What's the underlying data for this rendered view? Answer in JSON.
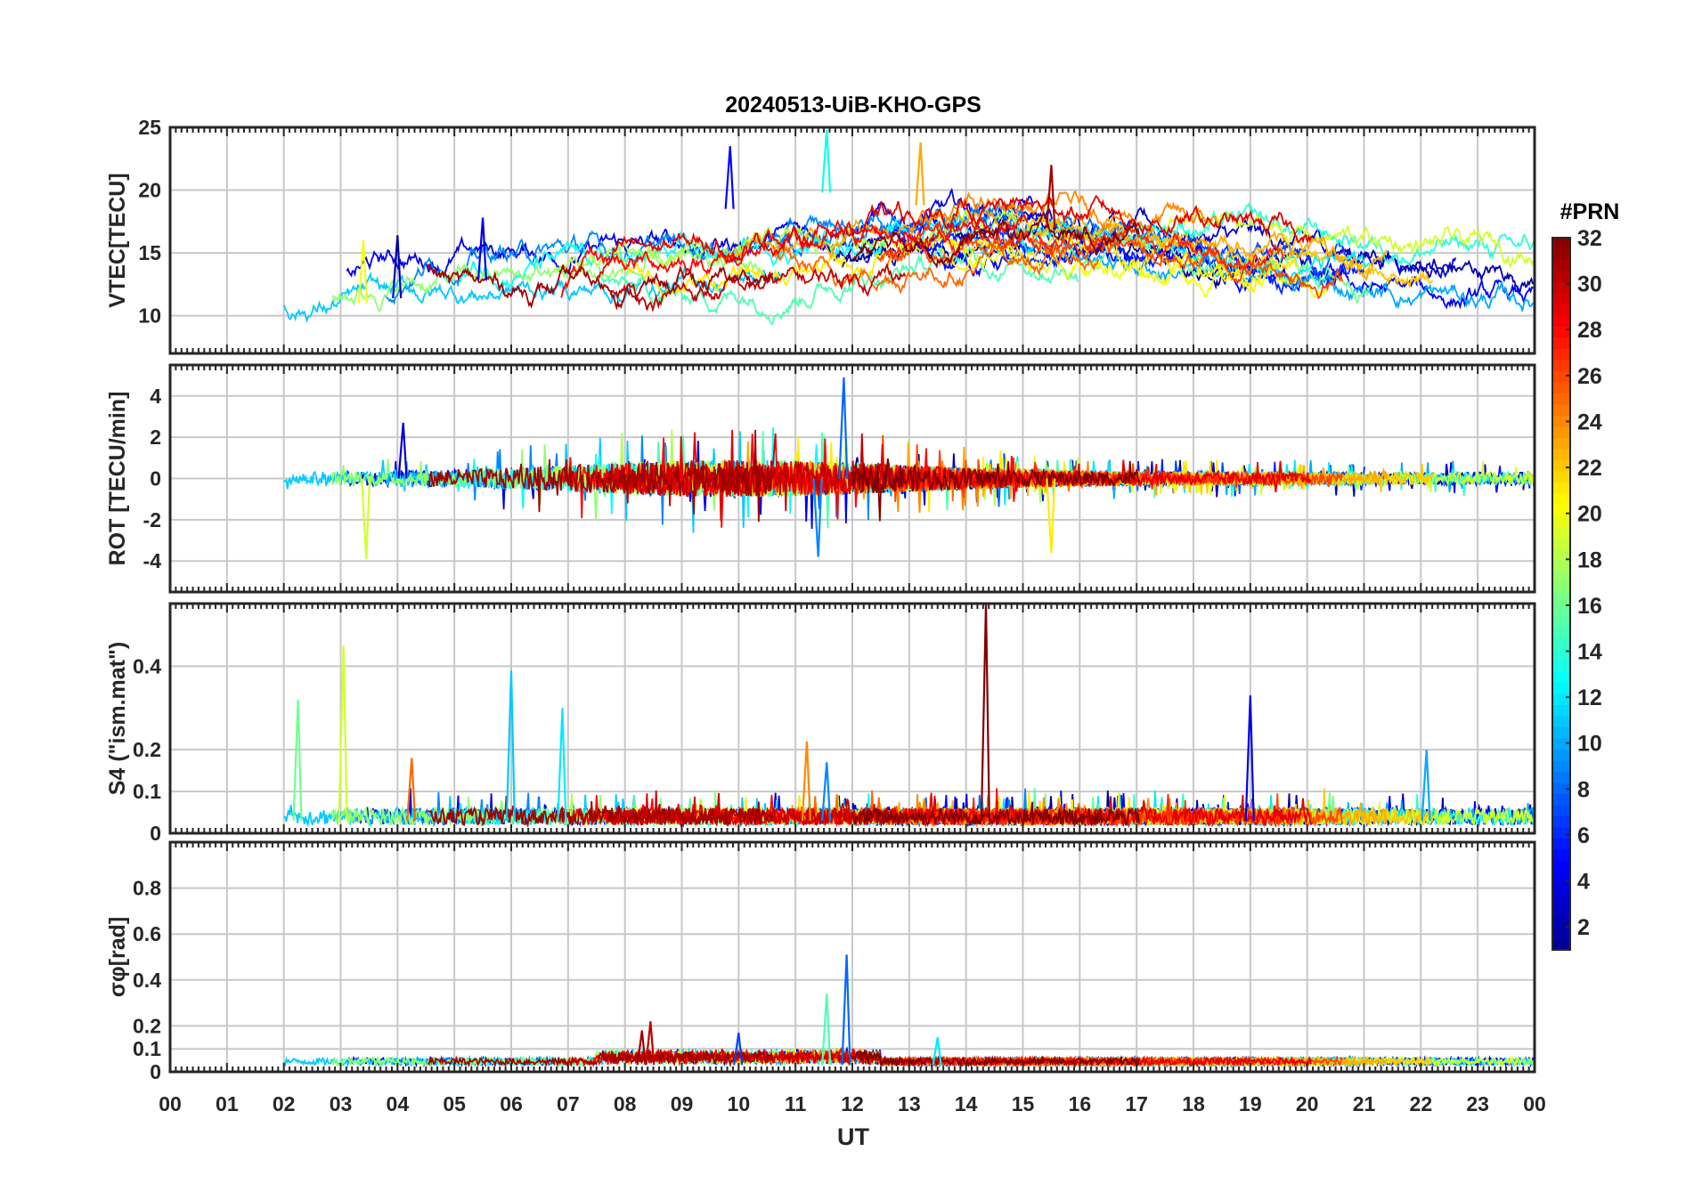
{
  "figure_title": "20240513-UiB-KHO-GPS",
  "x_axis": {
    "label": "UT",
    "range_hours": [
      0,
      24
    ],
    "tick_labels": [
      "00",
      "01",
      "02",
      "03",
      "04",
      "05",
      "06",
      "07",
      "08",
      "09",
      "10",
      "11",
      "12",
      "13",
      "14",
      "15",
      "16",
      "17",
      "18",
      "19",
      "20",
      "21",
      "22",
      "23",
      "00"
    ]
  },
  "colorbar": {
    "label": "#PRN",
    "range": [
      1,
      32
    ],
    "tick_values": [
      2,
      4,
      6,
      8,
      10,
      12,
      14,
      16,
      18,
      20,
      22,
      24,
      26,
      28,
      30,
      32
    ],
    "tick_labels": [
      "2",
      "4",
      "6",
      "8",
      "10",
      "12",
      "14",
      "16",
      "18",
      "20",
      "22",
      "24",
      "26",
      "28",
      "30",
      "32"
    ],
    "colormap": "jet",
    "palette": [
      "#00008f",
      "#0000ff",
      "#0080ff",
      "#00ffff",
      "#80ff80",
      "#ffff00",
      "#ff8000",
      "#ff0000",
      "#800000"
    ]
  },
  "colors": {
    "axis": "#262626",
    "grid": "#c8c8c8",
    "background": "#ffffff"
  },
  "chart_data": [
    {
      "type": "line",
      "id": "vtec",
      "ylabel": "VTEC[TECU]",
      "ylim": [
        7,
        25
      ],
      "yticks": [
        10,
        15,
        20,
        25
      ],
      "ytick_labels": [
        "10",
        "15",
        "20",
        "25"
      ],
      "grid": true,
      "highlights": [
        {
          "prn": 5,
          "t": 9.85,
          "v": 23.5
        },
        {
          "prn": 13,
          "t": 11.55,
          "v": 24.8
        },
        {
          "prn": 23,
          "t": 13.2,
          "v": 23.8
        },
        {
          "prn": 4,
          "t": 5.5,
          "v": 17.8
        },
        {
          "prn": 2,
          "t": 4.0,
          "v": 16.4
        },
        {
          "prn": 20,
          "t": 3.4,
          "v": 16.0
        },
        {
          "prn": 31,
          "t": 15.5,
          "v": 22.0
        }
      ]
    },
    {
      "type": "line",
      "id": "rot",
      "ylabel": "ROT [TECU/min]",
      "ylim": [
        -5.5,
        5.5
      ],
      "yticks": [
        -4,
        -2,
        0,
        2,
        4
      ],
      "ytick_labels": [
        "-4",
        "-2",
        "0",
        "2",
        "4"
      ],
      "grid": true,
      "highlights": [
        {
          "prn": 8,
          "t": 11.85,
          "v": 4.9
        },
        {
          "prn": 9,
          "t": 11.4,
          "v": -3.8
        },
        {
          "prn": 19,
          "t": 3.45,
          "v": -3.9
        },
        {
          "prn": 21,
          "t": 15.5,
          "v": -3.6
        },
        {
          "prn": 3,
          "t": 4.1,
          "v": 2.7
        }
      ]
    },
    {
      "type": "line",
      "id": "s4",
      "ylabel": "S4 (\"ism.mat\")",
      "ylim": [
        0,
        0.55
      ],
      "yticks": [
        0,
        0.1,
        0.2,
        0.4
      ],
      "ytick_labels": [
        "0",
        "0.1",
        "0.2",
        "0.4"
      ],
      "grid": true,
      "highlights": [
        {
          "prn": 32,
          "t": 14.35,
          "v": 0.55
        },
        {
          "prn": 19,
          "t": 3.05,
          "v": 0.45
        },
        {
          "prn": 11,
          "t": 6.0,
          "v": 0.39
        },
        {
          "prn": 4,
          "t": 19.0,
          "v": 0.33
        },
        {
          "prn": 16,
          "t": 2.25,
          "v": 0.32
        },
        {
          "prn": 12,
          "t": 6.9,
          "v": 0.3
        },
        {
          "prn": 24,
          "t": 11.2,
          "v": 0.22
        },
        {
          "prn": 10,
          "t": 22.1,
          "v": 0.2
        },
        {
          "prn": 25,
          "t": 4.25,
          "v": 0.18
        },
        {
          "prn": 9,
          "t": 11.55,
          "v": 0.17
        }
      ]
    },
    {
      "type": "line",
      "id": "sigma_phi",
      "ylabel": "σφ[rad]",
      "ylim": [
        0,
        1.0
      ],
      "yticks": [
        0,
        0.1,
        0.2,
        0.4,
        0.6,
        0.8
      ],
      "ytick_labels": [
        "0",
        "0.1",
        "0.2",
        "0.4",
        "0.6",
        "0.8"
      ],
      "grid": true,
      "highlights": [
        {
          "prn": 8,
          "t": 11.9,
          "v": 0.51
        },
        {
          "prn": 15,
          "t": 11.55,
          "v": 0.34
        },
        {
          "prn": 30,
          "t": 8.45,
          "v": 0.22
        },
        {
          "prn": 31,
          "t": 8.3,
          "v": 0.18
        },
        {
          "prn": 7,
          "t": 10.0,
          "v": 0.17
        },
        {
          "prn": 12,
          "t": 13.5,
          "v": 0.15
        }
      ]
    }
  ]
}
